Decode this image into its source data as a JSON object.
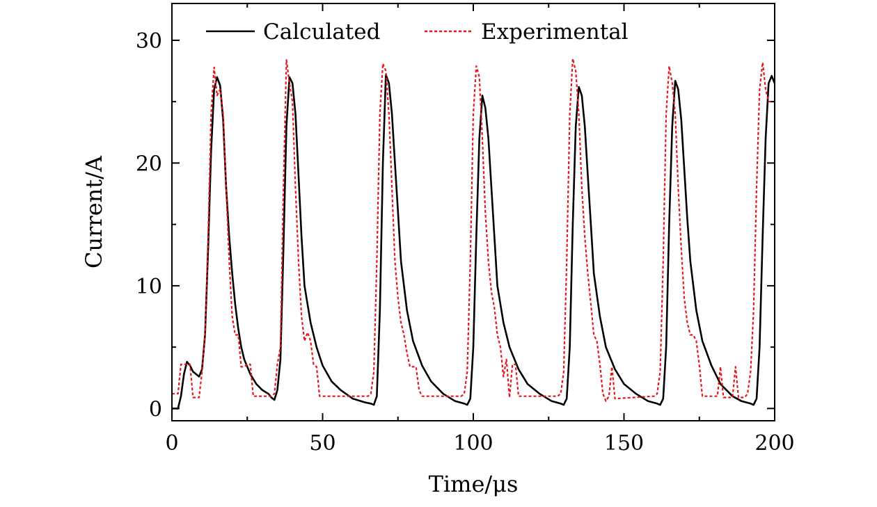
{
  "chart_data": {
    "type": "line",
    "xlabel": "Time/μs",
    "ylabel": "Current/A",
    "xlim": [
      0,
      200
    ],
    "ylim": [
      -1,
      33
    ],
    "x_ticks": [
      0,
      50,
      100,
      150,
      200
    ],
    "y_ticks": [
      0,
      10,
      20,
      30
    ],
    "grid": false,
    "legend_position": "top",
    "series": [
      {
        "name": "Calculated",
        "color": "#000000",
        "style": "solid",
        "points": [
          [
            0,
            0
          ],
          [
            2,
            0
          ],
          [
            3,
            1
          ],
          [
            4,
            2.8
          ],
          [
            5,
            3.8
          ],
          [
            6,
            3.5
          ],
          [
            7,
            3
          ],
          [
            8,
            2.8
          ],
          [
            9,
            2.6
          ],
          [
            10,
            3.2
          ],
          [
            11,
            6
          ],
          [
            12,
            13
          ],
          [
            13,
            21
          ],
          [
            14,
            26
          ],
          [
            15,
            27
          ],
          [
            16,
            26.3
          ],
          [
            17,
            23.5
          ],
          [
            18,
            18
          ],
          [
            19,
            14
          ],
          [
            20,
            11
          ],
          [
            21,
            8.5
          ],
          [
            22,
            6.5
          ],
          [
            23,
            5
          ],
          [
            24,
            4
          ],
          [
            26,
            2.8
          ],
          [
            28,
            2
          ],
          [
            30,
            1.5
          ],
          [
            32,
            1.2
          ],
          [
            33,
            0.9
          ],
          [
            34,
            0.7
          ],
          [
            35,
            1.5
          ],
          [
            36,
            4
          ],
          [
            37,
            13
          ],
          [
            38,
            23
          ],
          [
            39,
            27
          ],
          [
            40,
            26.5
          ],
          [
            41,
            24
          ],
          [
            42,
            19
          ],
          [
            43,
            14
          ],
          [
            44,
            10
          ],
          [
            46,
            7
          ],
          [
            48,
            5
          ],
          [
            50,
            3.5
          ],
          [
            53,
            2.2
          ],
          [
            56,
            1.5
          ],
          [
            60,
            0.8
          ],
          [
            64,
            0.5
          ],
          [
            66,
            0.4
          ],
          [
            67,
            0.3
          ],
          [
            68,
            1
          ],
          [
            69,
            8
          ],
          [
            70,
            20
          ],
          [
            71,
            27.2
          ],
          [
            72,
            26.5
          ],
          [
            73,
            24
          ],
          [
            74,
            20
          ],
          [
            75,
            16
          ],
          [
            76,
            12
          ],
          [
            78,
            8
          ],
          [
            80,
            5.5
          ],
          [
            83,
            3.5
          ],
          [
            86,
            2.2
          ],
          [
            90,
            1.2
          ],
          [
            94,
            0.6
          ],
          [
            97,
            0.4
          ],
          [
            98,
            0.3
          ],
          [
            99,
            0.8
          ],
          [
            100,
            5
          ],
          [
            101,
            14
          ],
          [
            102,
            22
          ],
          [
            103,
            25.5
          ],
          [
            104,
            24.5
          ],
          [
            105,
            22
          ],
          [
            106,
            18
          ],
          [
            107,
            14
          ],
          [
            108,
            10
          ],
          [
            110,
            7
          ],
          [
            112,
            5
          ],
          [
            115,
            3.2
          ],
          [
            118,
            2
          ],
          [
            122,
            1.2
          ],
          [
            126,
            0.6
          ],
          [
            129,
            0.4
          ],
          [
            130,
            0.3
          ],
          [
            131,
            0.8
          ],
          [
            132,
            5
          ],
          [
            133,
            15
          ],
          [
            134,
            23
          ],
          [
            135,
            26.2
          ],
          [
            136,
            25.5
          ],
          [
            137,
            23
          ],
          [
            138,
            19
          ],
          [
            139,
            15
          ],
          [
            140,
            11
          ],
          [
            142,
            7.5
          ],
          [
            144,
            5
          ],
          [
            147,
            3.2
          ],
          [
            150,
            2
          ],
          [
            154,
            1.2
          ],
          [
            158,
            0.6
          ],
          [
            161,
            0.4
          ],
          [
            162,
            0.3
          ],
          [
            163,
            0.8
          ],
          [
            164,
            5
          ],
          [
            165,
            15
          ],
          [
            166,
            23
          ],
          [
            167,
            26.7
          ],
          [
            168,
            26
          ],
          [
            169,
            23.5
          ],
          [
            170,
            19.5
          ],
          [
            171,
            15.5
          ],
          [
            172,
            12
          ],
          [
            174,
            8
          ],
          [
            176,
            5.5
          ],
          [
            179,
            3.5
          ],
          [
            182,
            2
          ],
          [
            186,
            1
          ],
          [
            189,
            0.6
          ],
          [
            192,
            0.4
          ],
          [
            193,
            0.3
          ],
          [
            194,
            0.8
          ],
          [
            195,
            5
          ],
          [
            196,
            14
          ],
          [
            197,
            22
          ],
          [
            198,
            26.5
          ],
          [
            199,
            27.1
          ],
          [
            200,
            26.5
          ]
        ]
      },
      {
        "name": "Experimental",
        "color": "#e8161b",
        "style": "dashed",
        "points": [
          [
            0,
            1.2
          ],
          [
            2,
            1.2
          ],
          [
            3,
            3.6
          ],
          [
            6,
            3.6
          ],
          [
            7,
            0.9
          ],
          [
            9,
            0.9
          ],
          [
            10,
            3
          ],
          [
            11,
            6
          ],
          [
            12,
            14
          ],
          [
            13,
            24
          ],
          [
            14,
            27.8
          ],
          [
            15,
            25.5
          ],
          [
            16,
            26
          ],
          [
            17,
            24
          ],
          [
            18,
            18
          ],
          [
            19,
            12
          ],
          [
            20,
            7.5
          ],
          [
            21,
            6
          ],
          [
            22,
            6
          ],
          [
            23,
            3.4
          ],
          [
            24,
            3.4
          ],
          [
            25,
            3.6
          ],
          [
            26,
            3.6
          ],
          [
            27,
            1
          ],
          [
            33,
            1
          ],
          [
            34,
            1.2
          ],
          [
            35,
            3.6
          ],
          [
            36,
            5
          ],
          [
            37,
            18
          ],
          [
            38,
            28.4
          ],
          [
            39,
            26.5
          ],
          [
            40,
            25
          ],
          [
            41,
            18
          ],
          [
            42,
            12
          ],
          [
            43,
            7.5
          ],
          [
            44,
            5.5
          ],
          [
            45,
            6.2
          ],
          [
            46,
            5.5
          ],
          [
            47,
            3.6
          ],
          [
            48,
            3.4
          ],
          [
            49,
            1
          ],
          [
            65,
            1
          ],
          [
            66,
            1.2
          ],
          [
            67,
            3
          ],
          [
            68,
            12
          ],
          [
            69,
            24
          ],
          [
            70,
            28.1
          ],
          [
            71,
            27.5
          ],
          [
            72,
            24
          ],
          [
            73,
            18
          ],
          [
            74,
            12
          ],
          [
            75,
            9
          ],
          [
            76,
            7
          ],
          [
            77,
            6
          ],
          [
            78,
            4.5
          ],
          [
            79,
            3.4
          ],
          [
            81,
            3.4
          ],
          [
            82,
            1.5
          ],
          [
            83,
            1
          ],
          [
            96,
            1
          ],
          [
            97,
            1.2
          ],
          [
            98,
            3
          ],
          [
            99,
            12
          ],
          [
            100,
            24
          ],
          [
            101,
            27.9
          ],
          [
            102,
            27
          ],
          [
            103,
            22
          ],
          [
            104,
            16
          ],
          [
            105,
            12
          ],
          [
            106,
            9.5
          ],
          [
            107,
            8.2
          ],
          [
            108,
            6
          ],
          [
            109,
            5
          ],
          [
            110,
            2.6
          ],
          [
            111,
            4
          ],
          [
            112,
            0.9
          ],
          [
            113,
            3.6
          ],
          [
            114,
            3.6
          ],
          [
            115,
            1
          ],
          [
            127,
            1
          ],
          [
            128,
            1
          ],
          [
            129,
            1.2
          ],
          [
            130,
            3
          ],
          [
            131,
            12
          ],
          [
            132,
            24
          ],
          [
            133,
            28.5
          ],
          [
            134,
            27.5
          ],
          [
            135,
            24
          ],
          [
            136,
            18
          ],
          [
            137,
            14
          ],
          [
            138,
            11
          ],
          [
            139,
            8.5
          ],
          [
            140,
            6
          ],
          [
            141,
            5.5
          ],
          [
            142,
            3.6
          ],
          [
            143,
            1.2
          ],
          [
            144,
            0.6
          ],
          [
            145,
            1
          ],
          [
            146,
            3.4
          ],
          [
            147,
            0.8
          ],
          [
            160,
            1
          ],
          [
            161,
            1.2
          ],
          [
            162,
            3
          ],
          [
            163,
            12
          ],
          [
            164,
            24
          ],
          [
            165,
            27.9
          ],
          [
            166,
            26.5
          ],
          [
            167,
            24
          ],
          [
            168,
            18
          ],
          [
            169,
            13
          ],
          [
            170,
            9
          ],
          [
            171,
            7
          ],
          [
            172,
            6
          ],
          [
            173,
            6
          ],
          [
            174,
            5.5
          ],
          [
            175,
            3.5
          ],
          [
            176,
            1
          ],
          [
            181,
            1
          ],
          [
            182,
            3.4
          ],
          [
            183,
            0.9
          ],
          [
            186,
            0.9
          ],
          [
            187,
            3.4
          ],
          [
            188,
            0.9
          ],
          [
            190,
            0.9
          ],
          [
            191,
            1.2
          ],
          [
            192,
            3
          ],
          [
            193,
            8
          ],
          [
            194,
            18
          ],
          [
            195,
            26
          ],
          [
            196,
            28.2
          ],
          [
            197,
            26
          ],
          [
            198,
            25
          ],
          [
            200,
            25
          ]
        ]
      }
    ]
  }
}
